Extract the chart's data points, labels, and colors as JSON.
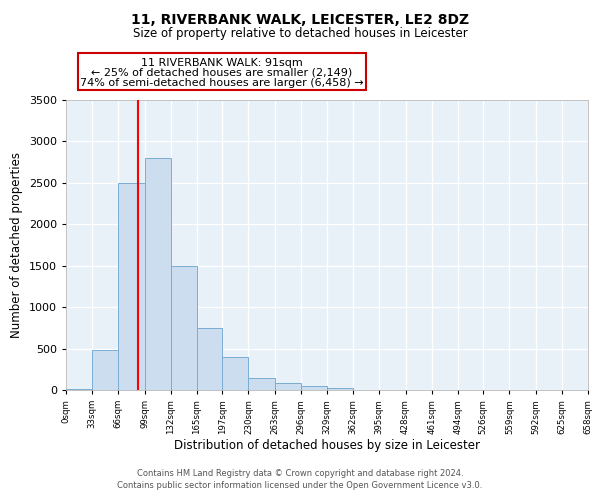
{
  "title": "11, RIVERBANK WALK, LEICESTER, LE2 8DZ",
  "subtitle": "Size of property relative to detached houses in Leicester",
  "xlabel": "Distribution of detached houses by size in Leicester",
  "ylabel": "Number of detached properties",
  "bar_color": "#ccddf0",
  "bar_edge_color": "#7aadd4",
  "background_color": "#e8f0f8",
  "grid_color": "#ffffff",
  "bin_edges": [
    0,
    33,
    66,
    99,
    132,
    165,
    197,
    230,
    263,
    296,
    329,
    362,
    395,
    428,
    461,
    494,
    526,
    559,
    592,
    625,
    658
  ],
  "bin_heights": [
    15,
    480,
    2500,
    2800,
    1500,
    750,
    400,
    150,
    80,
    50,
    30,
    5,
    0,
    0,
    0,
    0,
    0,
    0,
    0,
    0
  ],
  "red_line_x": 91,
  "annotation_line1": "11 RIVERBANK WALK: 91sqm",
  "annotation_line2": "← 25% of detached houses are smaller (2,149)",
  "annotation_line3": "74% of semi-detached houses are larger (6,458) →",
  "annotation_box_color": "#ffffff",
  "annotation_box_edge_color": "#cc0000",
  "ylim": [
    0,
    3500
  ],
  "xlim": [
    0,
    658
  ],
  "xtick_labels": [
    "0sqm",
    "33sqm",
    "66sqm",
    "99sqm",
    "132sqm",
    "165sqm",
    "197sqm",
    "230sqm",
    "263sqm",
    "296sqm",
    "329sqm",
    "362sqm",
    "395sqm",
    "428sqm",
    "461sqm",
    "494sqm",
    "526sqm",
    "559sqm",
    "592sqm",
    "625sqm",
    "658sqm"
  ],
  "xtick_positions": [
    0,
    33,
    66,
    99,
    132,
    165,
    197,
    230,
    263,
    296,
    329,
    362,
    395,
    428,
    461,
    494,
    526,
    559,
    592,
    625,
    658
  ],
  "ytick_positions": [
    0,
    500,
    1000,
    1500,
    2000,
    2500,
    3000,
    3500
  ],
  "footer_line1": "Contains HM Land Registry data © Crown copyright and database right 2024.",
  "footer_line2": "Contains public sector information licensed under the Open Government Licence v3.0."
}
